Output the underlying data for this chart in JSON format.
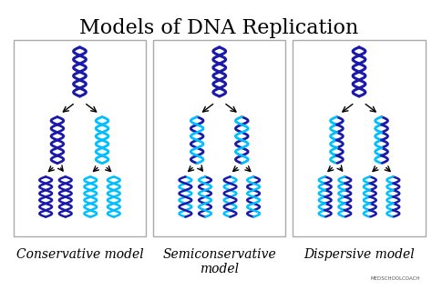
{
  "title": "Models of DNA Replication",
  "title_fontsize": 16,
  "title_font": "serif",
  "models": [
    "Conservative model",
    "Semiconservative\nmodel",
    "Dispersive model"
  ],
  "background": "#f5f5f5",
  "box_color": "#e8e8e8",
  "dark_blue": "#1a1aaa",
  "light_blue": "#00bfff",
  "mid_blue": "#3399ff",
  "label_fontsize": 10,
  "label_font": "serif"
}
